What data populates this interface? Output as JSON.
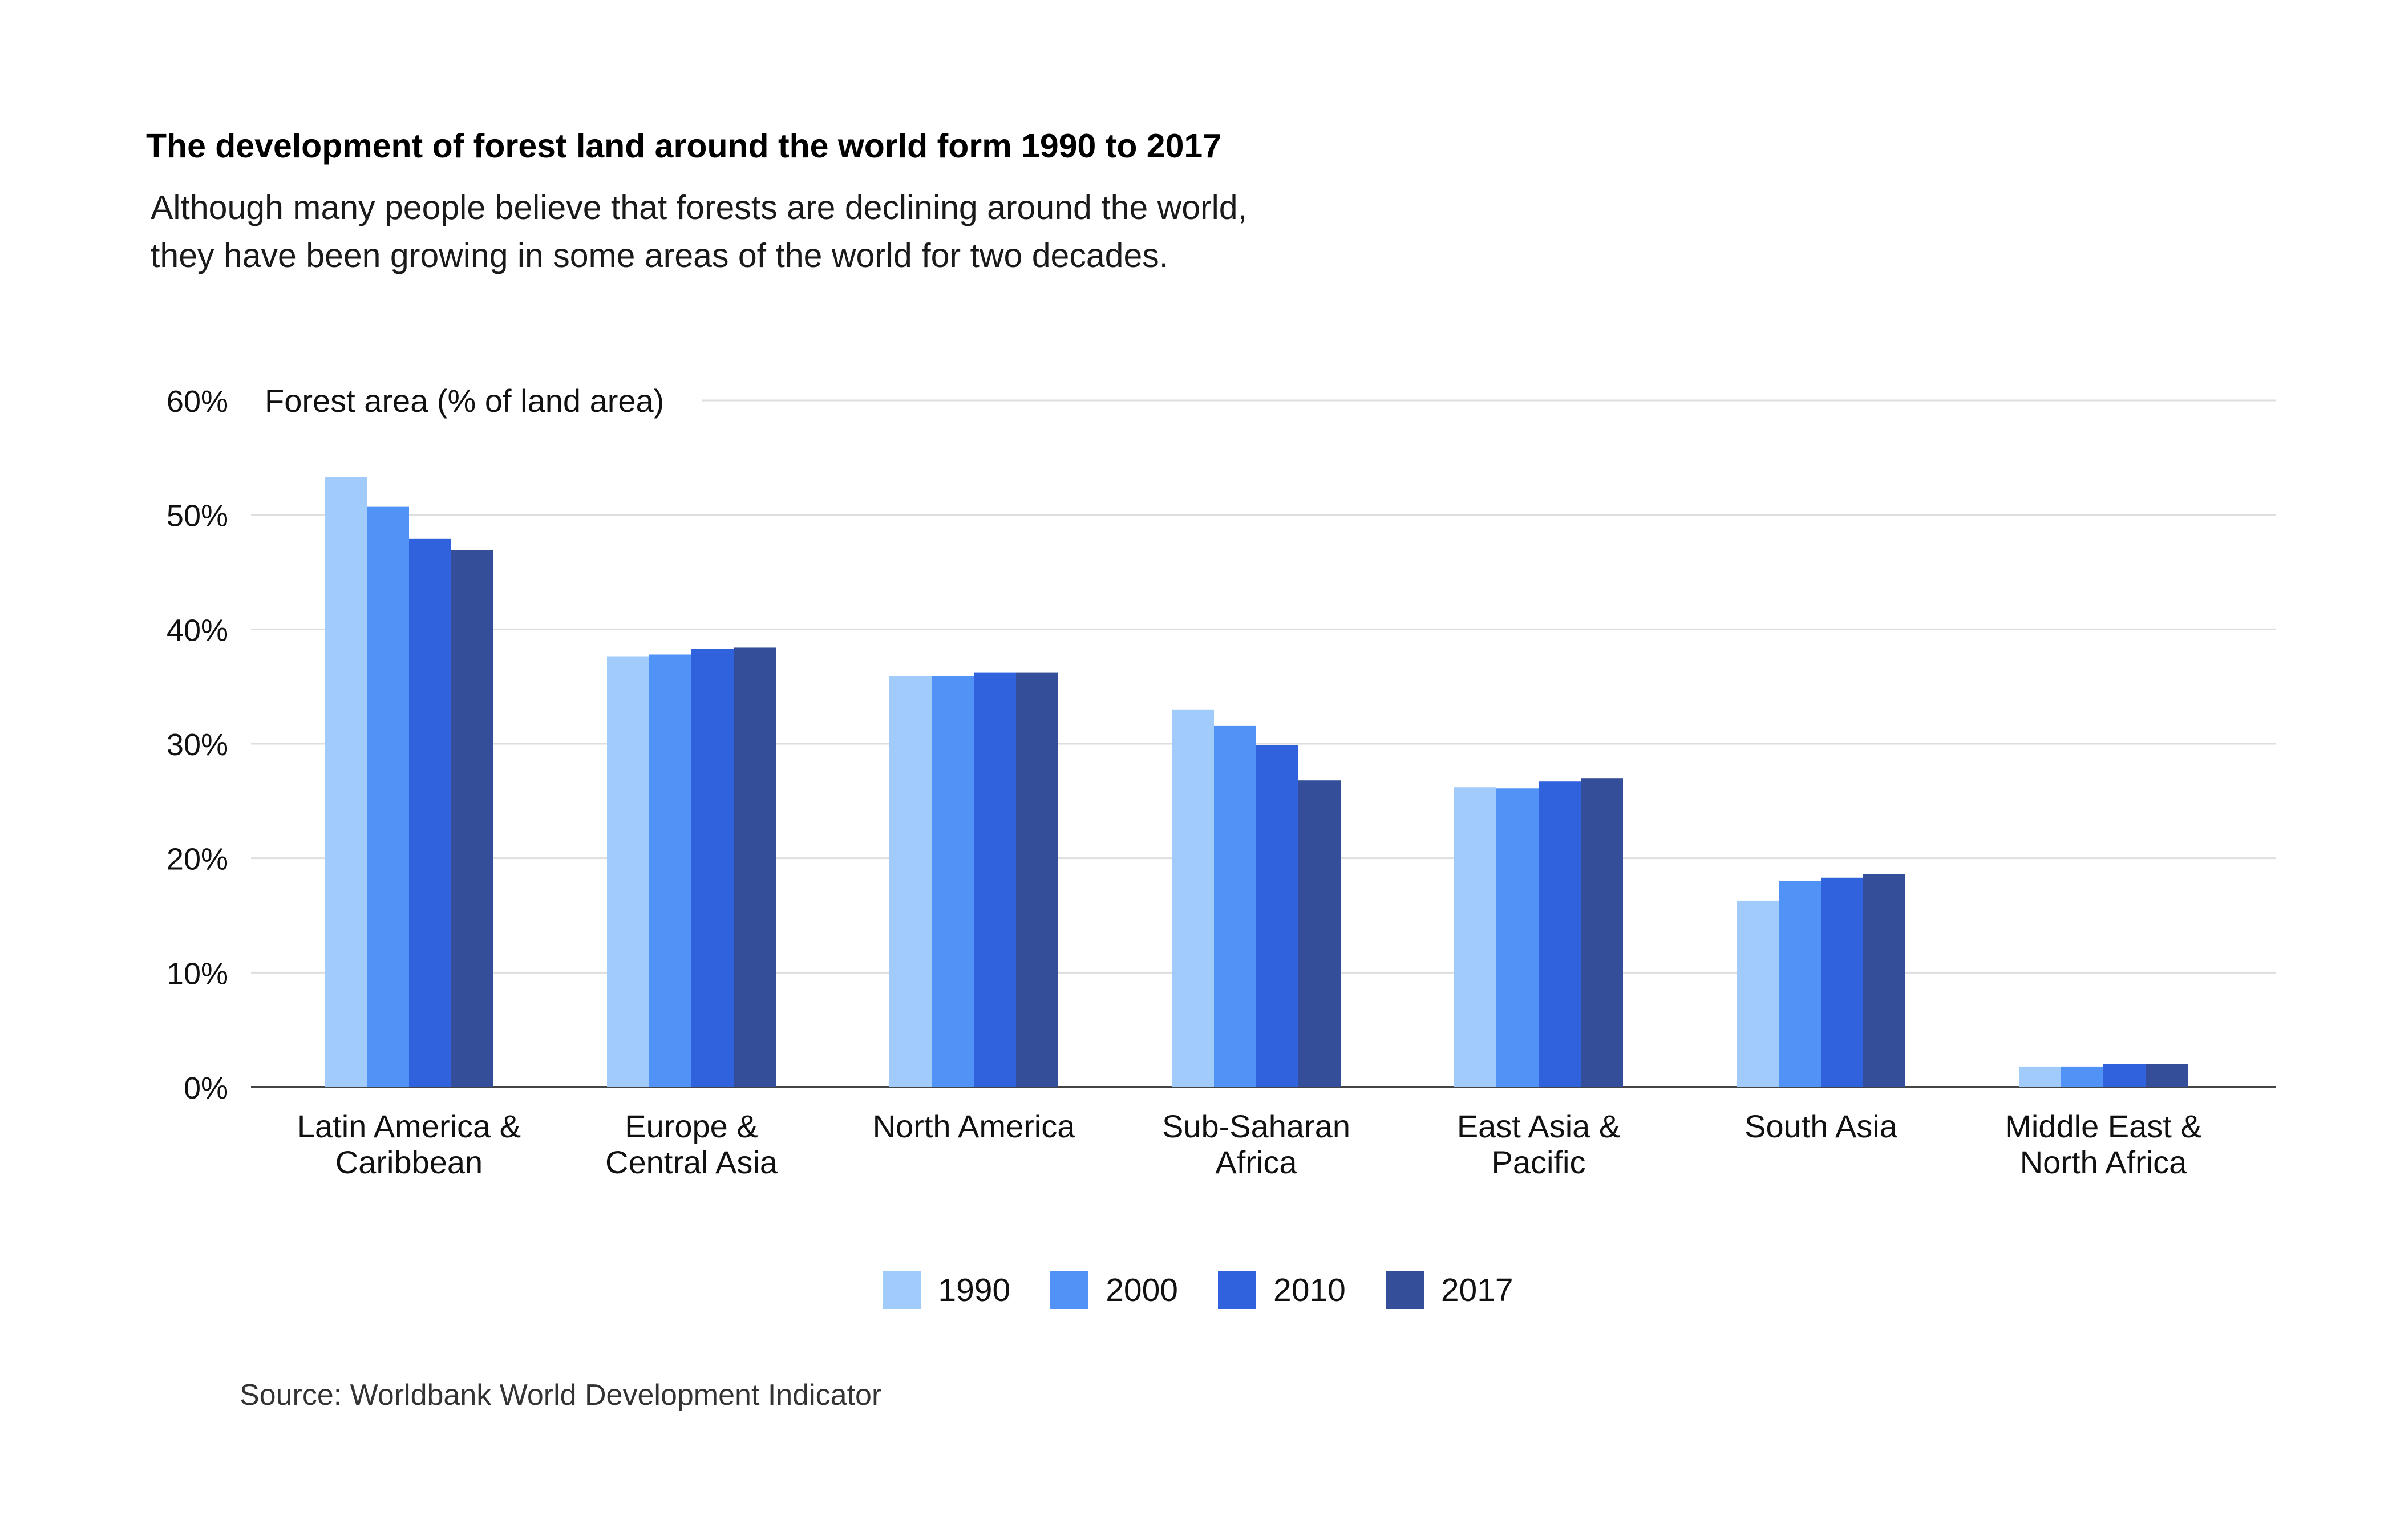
{
  "title": "The development of forest land around the world form 1990 to 2017",
  "subtitle_lines": [
    "Although many people believe that forests are declining around the world,",
    "they have been growing in some areas of the world for two decades."
  ],
  "source": "Source: Worldbank World Development Indicator",
  "colors": {
    "1990": "#a0cbfa",
    "2000": "#5092f5",
    "2010": "#3162de",
    "2017": "#344e99",
    "grid": "#dedede",
    "axis": "#444444"
  },
  "chart_data": {
    "type": "bar",
    "title": "The development of forest land around the world form 1990 to 2017",
    "ylabel": "Forest area (% of land area)",
    "ylim": [
      0,
      60
    ],
    "yticks": [
      "0%",
      "10%",
      "20%",
      "30%",
      "40%",
      "50%",
      "60%"
    ],
    "grid": true,
    "legend_position": "bottom",
    "categories": [
      [
        "Latin America &",
        "Caribbean"
      ],
      [
        "Europe &",
        "Central Asia"
      ],
      [
        "North America"
      ],
      [
        "Sub-Saharan",
        "Africa"
      ],
      [
        "East Asia &",
        "Pacific"
      ],
      [
        "South Asia"
      ],
      [
        "Middle East &",
        "North Africa"
      ]
    ],
    "series": [
      {
        "name": "1990",
        "values": [
          53.3,
          37.6,
          35.9,
          33.0,
          26.2,
          16.3,
          1.8
        ]
      },
      {
        "name": "2000",
        "values": [
          50.7,
          37.8,
          35.9,
          31.6,
          26.1,
          18.0,
          1.8
        ]
      },
      {
        "name": "2010",
        "values": [
          47.9,
          38.3,
          36.2,
          29.9,
          26.7,
          18.3,
          2.0
        ]
      },
      {
        "name": "2017",
        "values": [
          46.9,
          38.4,
          36.2,
          26.8,
          27.0,
          18.6,
          2.0
        ]
      }
    ]
  }
}
